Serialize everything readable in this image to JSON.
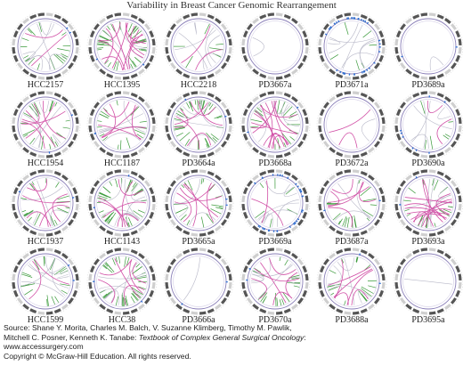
{
  "title": "Variability in Breast Cancer Genomic Rearrangement",
  "samples": [
    {
      "label": "HCC2157",
      "density": "med",
      "blue": "low",
      "pink": "low"
    },
    {
      "label": "HCC1395",
      "density": "high",
      "blue": "low",
      "pink": "high"
    },
    {
      "label": "HCC2218",
      "density": "low",
      "blue": "none",
      "pink": "low"
    },
    {
      "label": "PD3667a",
      "density": "none",
      "blue": "none",
      "pink": "none"
    },
    {
      "label": "PD3671a",
      "density": "low",
      "blue": "high",
      "pink": "none"
    },
    {
      "label": "PD3689a",
      "density": "none",
      "blue": "low",
      "pink": "none"
    },
    {
      "label": "HCC1954",
      "density": "med",
      "blue": "low",
      "pink": "med"
    },
    {
      "label": "HCC1187",
      "density": "med",
      "blue": "low",
      "pink": "med"
    },
    {
      "label": "PD3664a",
      "density": "high",
      "blue": "low",
      "pink": "med"
    },
    {
      "label": "PD3668a",
      "density": "med",
      "blue": "low",
      "pink": "high"
    },
    {
      "label": "PD3672a",
      "density": "none",
      "blue": "none",
      "pink": "low"
    },
    {
      "label": "PD3690a",
      "density": "low",
      "blue": "med",
      "pink": "low"
    },
    {
      "label": "HCC1937",
      "density": "med",
      "blue": "low",
      "pink": "med"
    },
    {
      "label": "HCC1143",
      "density": "high",
      "blue": "low",
      "pink": "med"
    },
    {
      "label": "PD3665a",
      "density": "med",
      "blue": "low",
      "pink": "med"
    },
    {
      "label": "PD3669a",
      "density": "low",
      "blue": "high",
      "pink": "low"
    },
    {
      "label": "PD3687a",
      "density": "med",
      "blue": "low",
      "pink": "med"
    },
    {
      "label": "PD3693a",
      "density": "med",
      "blue": "low",
      "pink": "high"
    },
    {
      "label": "HCC1599",
      "density": "med",
      "blue": "low",
      "pink": "low"
    },
    {
      "label": "HCC38",
      "density": "high",
      "blue": "low",
      "pink": "med"
    },
    {
      "label": "PD3666a",
      "density": "none",
      "blue": "low",
      "pink": "none"
    },
    {
      "label": "PD3670a",
      "density": "med",
      "blue": "low",
      "pink": "med"
    },
    {
      "label": "PD3688a",
      "density": "med",
      "blue": "low",
      "pink": "med"
    },
    {
      "label": "PD3695a",
      "density": "none",
      "blue": "none",
      "pink": "none"
    }
  ],
  "colors": {
    "ring_dark": "#555555",
    "ring_light": "#cfcfcf",
    "inner_ring": "#8a7fb8",
    "green": "#3a9a3a",
    "blue": "#2f6fd0",
    "pink": "#d14fa6",
    "gray_line": "#b8b8c8"
  },
  "credits": {
    "line1_prefix": "Source: Shane Y. Morita, Charles M. Balch, V. Suzanne Klimberg, Timothy M. Pawlik,",
    "line2_authors": "Mitchell C. Posner, Kenneth K. Tanabe: ",
    "book_title": "Textbook of Complex General Surgical Oncology",
    "line2_suffix": ":",
    "line3": "www.accessurgery.com",
    "line4": "Copyright © McGraw-Hill Education. All rights reserved."
  }
}
